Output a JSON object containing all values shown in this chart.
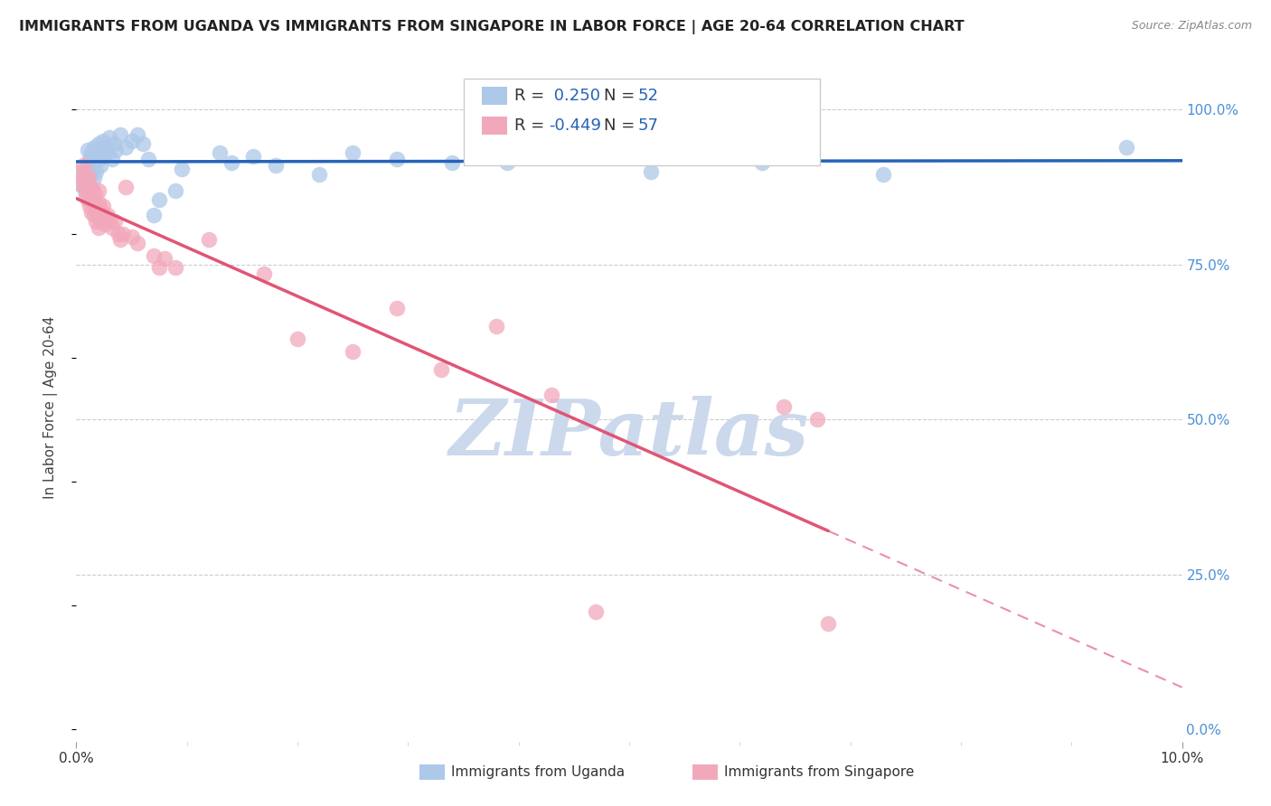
{
  "title": "IMMIGRANTS FROM UGANDA VS IMMIGRANTS FROM SINGAPORE IN LABOR FORCE | AGE 20-64 CORRELATION CHART",
  "source": "Source: ZipAtlas.com",
  "ylabel": "In Labor Force | Age 20-64",
  "xlim": [
    0.0,
    0.1
  ],
  "ylim": [
    0.0,
    1.05
  ],
  "uganda_R": 0.25,
  "uganda_N": 52,
  "singapore_R": -0.449,
  "singapore_N": 57,
  "uganda_color": "#adc8e8",
  "singapore_color": "#f2a8bb",
  "uganda_line_color": "#2563b8",
  "singapore_line_color": "#e05575",
  "watermark": "ZIPatlas",
  "watermark_color": "#ccd8ec",
  "uganda_points": [
    [
      0.0004,
      0.88
    ],
    [
      0.0006,
      0.895
    ],
    [
      0.0008,
      0.87
    ],
    [
      0.001,
      0.935
    ],
    [
      0.001,
      0.91
    ],
    [
      0.001,
      0.885
    ],
    [
      0.0012,
      0.92
    ],
    [
      0.0012,
      0.895
    ],
    [
      0.0012,
      0.87
    ],
    [
      0.0014,
      0.93
    ],
    [
      0.0014,
      0.905
    ],
    [
      0.0016,
      0.94
    ],
    [
      0.0016,
      0.915
    ],
    [
      0.0016,
      0.89
    ],
    [
      0.0018,
      0.925
    ],
    [
      0.0018,
      0.9
    ],
    [
      0.002,
      0.945
    ],
    [
      0.002,
      0.92
    ],
    [
      0.0022,
      0.935
    ],
    [
      0.0022,
      0.91
    ],
    [
      0.0024,
      0.95
    ],
    [
      0.0024,
      0.925
    ],
    [
      0.0026,
      0.94
    ],
    [
      0.0028,
      0.93
    ],
    [
      0.003,
      0.955
    ],
    [
      0.0032,
      0.92
    ],
    [
      0.0034,
      0.945
    ],
    [
      0.0036,
      0.935
    ],
    [
      0.004,
      0.96
    ],
    [
      0.0045,
      0.94
    ],
    [
      0.005,
      0.95
    ],
    [
      0.0055,
      0.96
    ],
    [
      0.006,
      0.945
    ],
    [
      0.0065,
      0.92
    ],
    [
      0.007,
      0.83
    ],
    [
      0.0075,
      0.855
    ],
    [
      0.009,
      0.87
    ],
    [
      0.0095,
      0.905
    ],
    [
      0.013,
      0.93
    ],
    [
      0.014,
      0.915
    ],
    [
      0.016,
      0.925
    ],
    [
      0.018,
      0.91
    ],
    [
      0.022,
      0.895
    ],
    [
      0.025,
      0.93
    ],
    [
      0.029,
      0.92
    ],
    [
      0.034,
      0.915
    ],
    [
      0.039,
      0.915
    ],
    [
      0.044,
      0.935
    ],
    [
      0.052,
      0.9
    ],
    [
      0.062,
      0.915
    ],
    [
      0.073,
      0.895
    ],
    [
      0.095,
      0.94
    ]
  ],
  "singapore_points": [
    [
      0.0004,
      0.9
    ],
    [
      0.0005,
      0.88
    ],
    [
      0.0006,
      0.91
    ],
    [
      0.0007,
      0.89
    ],
    [
      0.0008,
      0.875
    ],
    [
      0.0009,
      0.86
    ],
    [
      0.001,
      0.895
    ],
    [
      0.001,
      0.875
    ],
    [
      0.001,
      0.855
    ],
    [
      0.0011,
      0.885
    ],
    [
      0.0012,
      0.865
    ],
    [
      0.0012,
      0.845
    ],
    [
      0.0013,
      0.875
    ],
    [
      0.0014,
      0.855
    ],
    [
      0.0014,
      0.835
    ],
    [
      0.0015,
      0.87
    ],
    [
      0.0016,
      0.85
    ],
    [
      0.0016,
      0.83
    ],
    [
      0.0017,
      0.865
    ],
    [
      0.0018,
      0.845
    ],
    [
      0.0018,
      0.82
    ],
    [
      0.0019,
      0.835
    ],
    [
      0.002,
      0.87
    ],
    [
      0.002,
      0.85
    ],
    [
      0.002,
      0.83
    ],
    [
      0.002,
      0.81
    ],
    [
      0.0022,
      0.84
    ],
    [
      0.0022,
      0.82
    ],
    [
      0.0024,
      0.845
    ],
    [
      0.0025,
      0.825
    ],
    [
      0.0026,
      0.815
    ],
    [
      0.0028,
      0.83
    ],
    [
      0.003,
      0.82
    ],
    [
      0.0032,
      0.81
    ],
    [
      0.0035,
      0.82
    ],
    [
      0.0038,
      0.8
    ],
    [
      0.004,
      0.79
    ],
    [
      0.0042,
      0.8
    ],
    [
      0.0045,
      0.875
    ],
    [
      0.005,
      0.795
    ],
    [
      0.0055,
      0.785
    ],
    [
      0.007,
      0.765
    ],
    [
      0.0075,
      0.745
    ],
    [
      0.008,
      0.76
    ],
    [
      0.009,
      0.745
    ],
    [
      0.012,
      0.79
    ],
    [
      0.017,
      0.735
    ],
    [
      0.02,
      0.63
    ],
    [
      0.025,
      0.61
    ],
    [
      0.029,
      0.68
    ],
    [
      0.033,
      0.58
    ],
    [
      0.038,
      0.65
    ],
    [
      0.043,
      0.54
    ],
    [
      0.047,
      0.19
    ],
    [
      0.064,
      0.52
    ],
    [
      0.067,
      0.5
    ],
    [
      0.068,
      0.17
    ]
  ]
}
